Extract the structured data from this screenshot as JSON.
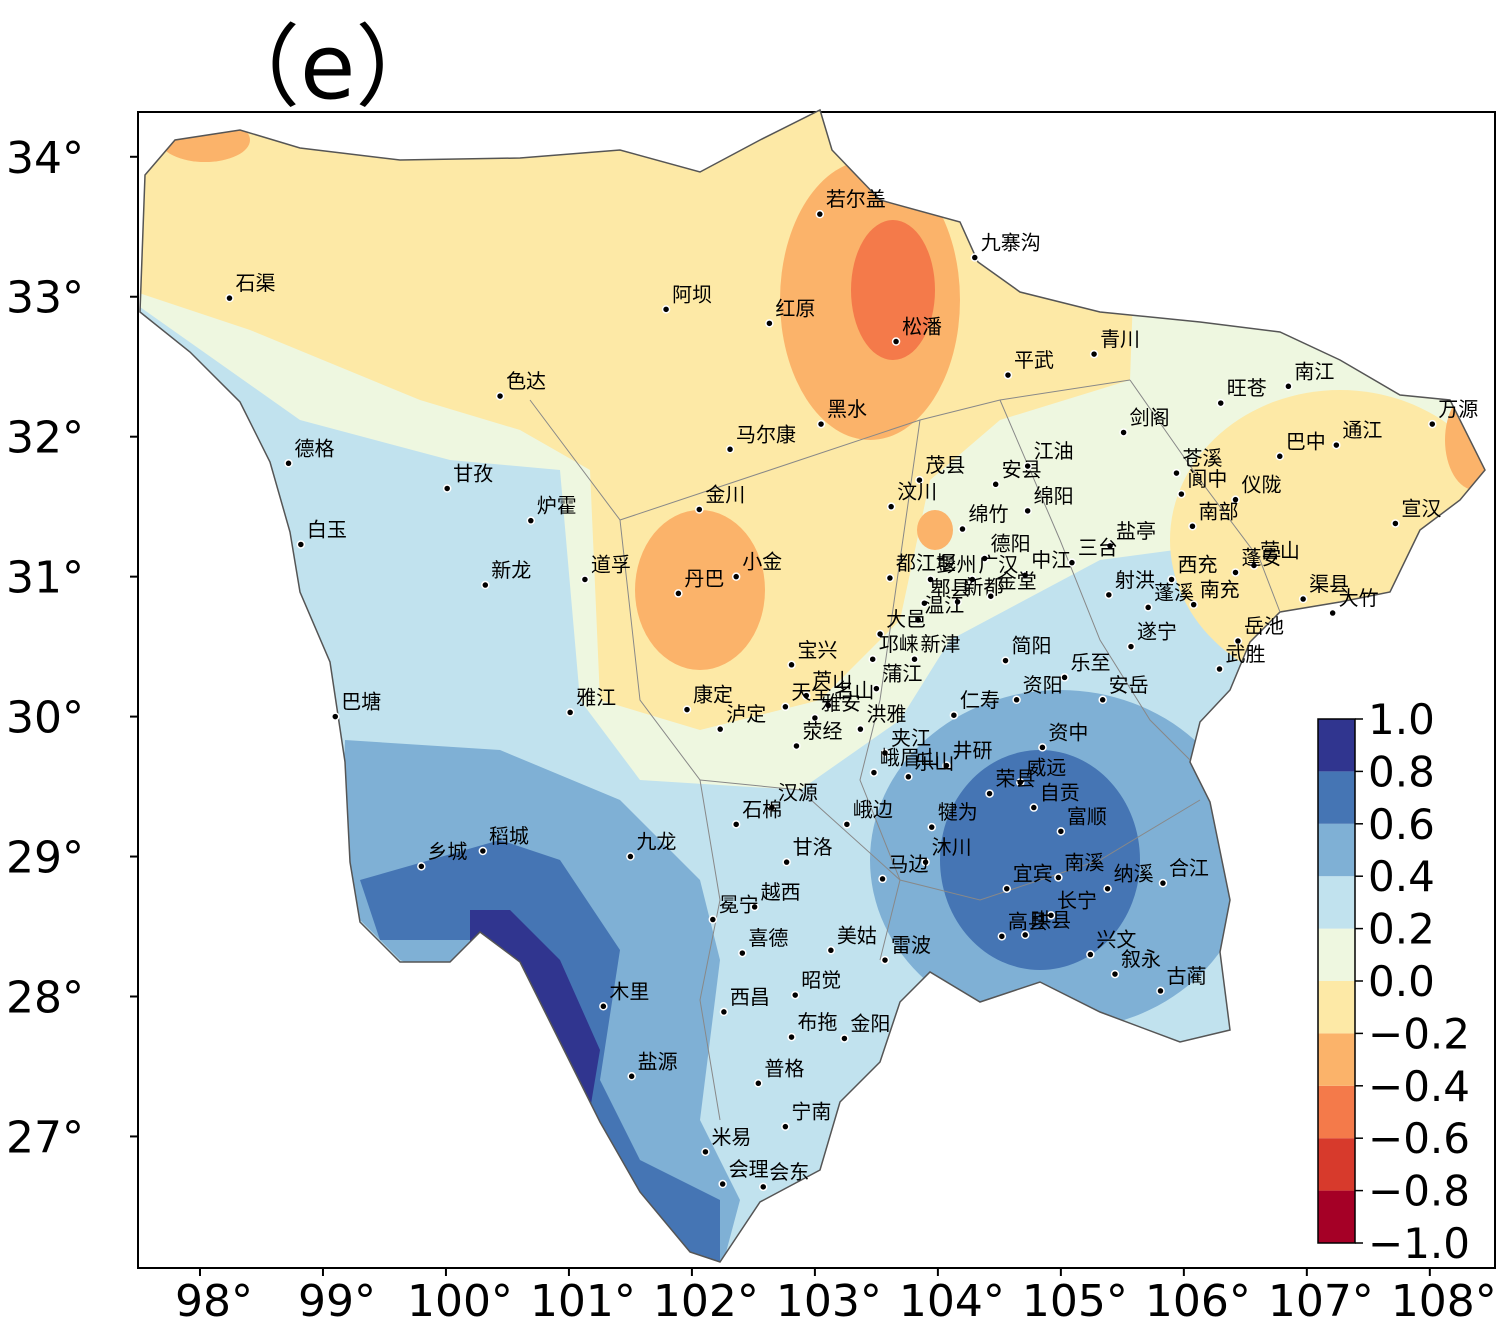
{
  "map_title": "（e）",
  "xlim": [
    97.496,
    108.53
  ],
  "ylim": [
    26.06,
    34.32
  ],
  "xticks": [
    {
      "value": 98,
      "label": "98°"
    },
    {
      "value": 99,
      "label": "99°"
    },
    {
      "value": 100,
      "label": "100°"
    },
    {
      "value": 101,
      "label": "101°"
    },
    {
      "value": 102,
      "label": "102°"
    },
    {
      "value": 103,
      "label": "103°"
    },
    {
      "value": 104,
      "label": "104°"
    },
    {
      "value": 105,
      "label": "105°"
    },
    {
      "value": 106,
      "label": "106°"
    },
    {
      "value": 107,
      "label": "107°"
    },
    {
      "value": 108,
      "label": "108°"
    }
  ],
  "yticks": [
    {
      "value": 27,
      "label": "27°"
    },
    {
      "value": 28,
      "label": "28°"
    },
    {
      "value": 29,
      "label": "29°"
    },
    {
      "value": 30,
      "label": "30°"
    },
    {
      "value": 31,
      "label": "31°"
    },
    {
      "value": 32,
      "label": "32°"
    },
    {
      "value": 33,
      "label": "33°"
    },
    {
      "value": 34,
      "label": "34°"
    }
  ],
  "colorbar": {
    "ticks": [
      {
        "value": -1.0,
        "label": "−1.0"
      },
      {
        "value": -0.8,
        "label": "−0.8"
      },
      {
        "value": -0.6,
        "label": "−0.6"
      },
      {
        "value": -0.4,
        "label": "−0.4"
      },
      {
        "value": -0.2,
        "label": "−0.2"
      },
      {
        "value": 0.0,
        "label": "0.0"
      },
      {
        "value": 0.2,
        "label": "0.2"
      },
      {
        "value": 0.4,
        "label": "0.4"
      },
      {
        "value": 0.6,
        "label": "0.6"
      },
      {
        "value": 0.8,
        "label": "0.8"
      },
      {
        "value": 1.0,
        "label": "1.0"
      }
    ],
    "colors": [
      "#a50026",
      "#d73a2c",
      "#f47a4a",
      "#fbb36a",
      "#fde9a6",
      "#eef7e0",
      "#c1e2ee",
      "#7fb0d5",
      "#4575b4",
      "#30358f"
    ]
  },
  "stations": [
    {
      "name": "石渠",
      "lon": 98.24,
      "lat": 32.99
    },
    {
      "name": "阿坝",
      "lon": 101.79,
      "lat": 32.91
    },
    {
      "name": "红原",
      "lon": 102.63,
      "lat": 32.81
    },
    {
      "name": "若尔盖",
      "lon": 103.04,
      "lat": 33.59
    },
    {
      "name": "九寨沟",
      "lon": 104.3,
      "lat": 33.28
    },
    {
      "name": "松潘",
      "lon": 103.66,
      "lat": 32.68
    },
    {
      "name": "青川",
      "lon": 105.27,
      "lat": 32.59
    },
    {
      "name": "平武",
      "lon": 104.57,
      "lat": 32.44
    },
    {
      "name": "南江",
      "lon": 106.85,
      "lat": 32.36
    },
    {
      "name": "旺苍",
      "lon": 106.3,
      "lat": 32.24
    },
    {
      "name": "色达",
      "lon": 100.44,
      "lat": 32.29
    },
    {
      "name": "黑水",
      "lon": 103.05,
      "lat": 32.09
    },
    {
      "name": "剑阁",
      "lon": 105.51,
      "lat": 32.03
    },
    {
      "name": "万源",
      "lon": 108.02,
      "lat": 32.09
    },
    {
      "name": "马尔康",
      "lon": 102.31,
      "lat": 31.91
    },
    {
      "name": "巴中",
      "lon": 106.78,
      "lat": 31.86
    },
    {
      "name": "通江",
      "lon": 107.24,
      "lat": 31.94
    },
    {
      "name": "德格",
      "lon": 98.72,
      "lat": 31.81
    },
    {
      "name": "苍溪",
      "lon": 105.94,
      "lat": 31.74
    },
    {
      "name": "甘孜",
      "lon": 100.01,
      "lat": 31.63
    },
    {
      "name": "茂县",
      "lon": 103.85,
      "lat": 31.69
    },
    {
      "name": "安县",
      "lon": 104.47,
      "lat": 31.66
    },
    {
      "name": "江油",
      "lon": 104.73,
      "lat": 31.79
    },
    {
      "name": "阆中",
      "lon": 105.98,
      "lat": 31.59
    },
    {
      "name": "仪陇",
      "lon": 106.42,
      "lat": 31.55
    },
    {
      "name": "绵阳",
      "lon": 104.73,
      "lat": 31.47
    },
    {
      "name": "金川",
      "lon": 102.06,
      "lat": 31.48
    },
    {
      "name": "汶川",
      "lon": 103.62,
      "lat": 31.5
    },
    {
      "name": "炉霍",
      "lon": 100.69,
      "lat": 31.4
    },
    {
      "name": "南部",
      "lon": 106.07,
      "lat": 31.36
    },
    {
      "name": "宣汉",
      "lon": 107.72,
      "lat": 31.38
    },
    {
      "name": "白玉",
      "lon": 98.82,
      "lat": 31.23
    },
    {
      "name": "绵竹",
      "lon": 104.2,
      "lat": 31.34
    },
    {
      "name": "盐亭",
      "lon": 105.4,
      "lat": 31.22
    },
    {
      "name": "德阳",
      "lon": 104.38,
      "lat": 31.13
    },
    {
      "name": "三台",
      "lon": 105.09,
      "lat": 31.1
    },
    {
      "name": "中江",
      "lon": 104.71,
      "lat": 31.01
    },
    {
      "name": "射洪",
      "lon": 105.39,
      "lat": 30.87
    },
    {
      "name": "西充",
      "lon": 105.9,
      "lat": 30.98
    },
    {
      "name": "蓬溪",
      "lon": 105.71,
      "lat": 30.78
    },
    {
      "name": "南充",
      "lon": 106.08,
      "lat": 30.8
    },
    {
      "name": "营山",
      "lon": 106.57,
      "lat": 31.08
    },
    {
      "name": "蓬安",
      "lon": 106.42,
      "lat": 31.03
    },
    {
      "name": "渠县",
      "lon": 106.97,
      "lat": 30.84
    },
    {
      "name": "大竹",
      "lon": 107.21,
      "lat": 30.74
    },
    {
      "name": "遂宁",
      "lon": 105.57,
      "lat": 30.5
    },
    {
      "name": "岳池",
      "lon": 106.44,
      "lat": 30.54
    },
    {
      "name": "武胜",
      "lon": 106.29,
      "lat": 30.34
    },
    {
      "name": "乐至",
      "lon": 105.03,
      "lat": 30.28
    },
    {
      "name": "安岳",
      "lon": 105.34,
      "lat": 30.12
    },
    {
      "name": "简阳",
      "lon": 104.55,
      "lat": 30.4
    },
    {
      "name": "资阳",
      "lon": 104.64,
      "lat": 30.12
    },
    {
      "name": "仁寿",
      "lon": 104.13,
      "lat": 30.01
    },
    {
      "name": "资中",
      "lon": 104.85,
      "lat": 29.78
    },
    {
      "name": "威远",
      "lon": 104.67,
      "lat": 29.53
    },
    {
      "name": "荣县",
      "lon": 104.42,
      "lat": 29.45
    },
    {
      "name": "自贡",
      "lon": 104.78,
      "lat": 29.35
    },
    {
      "name": "富顺",
      "lon": 105.0,
      "lat": 29.18
    },
    {
      "name": "井研",
      "lon": 104.07,
      "lat": 29.65
    },
    {
      "name": "都江堰",
      "lon": 103.61,
      "lat": 30.99
    },
    {
      "name": "彭州",
      "lon": 103.94,
      "lat": 30.98
    },
    {
      "name": "广汉",
      "lon": 104.28,
      "lat": 30.98
    },
    {
      "name": "郫县",
      "lon": 103.89,
      "lat": 30.81
    },
    {
      "name": "新都",
      "lon": 104.16,
      "lat": 30.82
    },
    {
      "name": "金堂",
      "lon": 104.43,
      "lat": 30.86
    },
    {
      "name": "温江",
      "lon": 103.84,
      "lat": 30.69
    },
    {
      "name": "大邑",
      "lon": 103.53,
      "lat": 30.59
    },
    {
      "name": "邛崃",
      "lon": 103.47,
      "lat": 30.41
    },
    {
      "name": "新津",
      "lon": 103.81,
      "lat": 30.41
    },
    {
      "name": "蒲江",
      "lon": 103.5,
      "lat": 30.2
    },
    {
      "name": "宝兴",
      "lon": 102.81,
      "lat": 30.37
    },
    {
      "name": "芦山",
      "lon": 102.93,
      "lat": 30.15
    },
    {
      "name": "天全",
      "lon": 102.76,
      "lat": 30.07
    },
    {
      "name": "名山",
      "lon": 103.11,
      "lat": 30.08
    },
    {
      "name": "雅安",
      "lon": 103.0,
      "lat": 29.99
    },
    {
      "name": "洪雅",
      "lon": 103.37,
      "lat": 29.91
    },
    {
      "name": "荥经",
      "lon": 102.85,
      "lat": 29.79
    },
    {
      "name": "夹江",
      "lon": 103.57,
      "lat": 29.74
    },
    {
      "name": "峨眉山",
      "lon": 103.48,
      "lat": 29.6
    },
    {
      "name": "乐山",
      "lon": 103.76,
      "lat": 29.57
    },
    {
      "name": "汉源",
      "lon": 102.65,
      "lat": 29.35
    },
    {
      "name": "峨边",
      "lon": 103.26,
      "lat": 29.23
    },
    {
      "name": "石棉",
      "lon": 102.36,
      "lat": 29.23
    },
    {
      "name": "犍为",
      "lon": 103.95,
      "lat": 29.21
    },
    {
      "name": "沐川",
      "lon": 103.9,
      "lat": 28.96
    },
    {
      "name": "马边",
      "lon": 103.55,
      "lat": 28.84
    },
    {
      "name": "九龙",
      "lon": 101.5,
      "lat": 29.0
    },
    {
      "name": "甘洛",
      "lon": 102.77,
      "lat": 28.96
    },
    {
      "name": "越西",
      "lon": 102.51,
      "lat": 28.64
    },
    {
      "name": "冕宁",
      "lon": 102.17,
      "lat": 28.55
    },
    {
      "name": "喜德",
      "lon": 102.41,
      "lat": 28.31
    },
    {
      "name": "美姑",
      "lon": 103.13,
      "lat": 28.33
    },
    {
      "name": "雷波",
      "lon": 103.57,
      "lat": 28.26
    },
    {
      "name": "昭觉",
      "lon": 102.84,
      "lat": 28.01
    },
    {
      "name": "西昌",
      "lon": 102.26,
      "lat": 27.89
    },
    {
      "name": "布拖",
      "lon": 102.81,
      "lat": 27.71
    },
    {
      "name": "金阳",
      "lon": 103.24,
      "lat": 27.7
    },
    {
      "name": "普格",
      "lon": 102.54,
      "lat": 27.38
    },
    {
      "name": "宁南",
      "lon": 102.76,
      "lat": 27.07
    },
    {
      "name": "米易",
      "lon": 102.11,
      "lat": 26.89
    },
    {
      "name": "会理",
      "lon": 102.25,
      "lat": 26.66
    },
    {
      "name": "会东",
      "lon": 102.58,
      "lat": 26.64
    },
    {
      "name": "盐源",
      "lon": 101.51,
      "lat": 27.43
    },
    {
      "name": "木里",
      "lon": 101.28,
      "lat": 27.93
    },
    {
      "name": "乡城",
      "lon": 99.8,
      "lat": 28.93
    },
    {
      "name": "稻城",
      "lon": 100.3,
      "lat": 29.04
    },
    {
      "name": "巴塘",
      "lon": 99.1,
      "lat": 30.0
    },
    {
      "name": "雅江",
      "lon": 101.01,
      "lat": 30.03
    },
    {
      "name": "康定",
      "lon": 101.96,
      "lat": 30.05
    },
    {
      "name": "泸定",
      "lon": 102.23,
      "lat": 29.91
    },
    {
      "name": "丹巴",
      "lon": 101.89,
      "lat": 30.88
    },
    {
      "name": "小金",
      "lon": 102.36,
      "lat": 31.0
    },
    {
      "name": "道孚",
      "lon": 101.13,
      "lat": 30.98
    },
    {
      "name": "新龙",
      "lon": 100.32,
      "lat": 30.94
    },
    {
      "name": "宜宾",
      "lon": 104.56,
      "lat": 28.77
    },
    {
      "name": "南溪",
      "lon": 104.98,
      "lat": 28.85
    },
    {
      "name": "纳溪",
      "lon": 105.38,
      "lat": 28.77
    },
    {
      "name": "合江",
      "lon": 105.83,
      "lat": 28.81
    },
    {
      "name": "长宁",
      "lon": 104.92,
      "lat": 28.58
    },
    {
      "name": "高县",
      "lon": 104.52,
      "lat": 28.43
    },
    {
      "name": "珙县",
      "lon": 104.71,
      "lat": 28.44
    },
    {
      "name": "兴文",
      "lon": 105.24,
      "lat": 28.3
    },
    {
      "name": "叙永",
      "lon": 105.44,
      "lat": 28.16
    },
    {
      "name": "古蔺",
      "lon": 105.81,
      "lat": 28.04
    }
  ]
}
